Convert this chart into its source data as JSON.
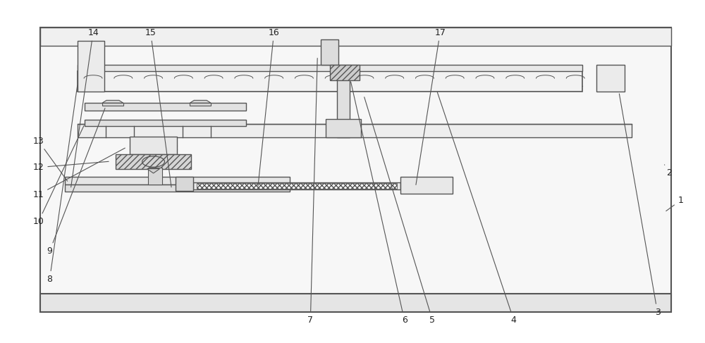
{
  "bg_color": "#ffffff",
  "lc": "#555555",
  "fig_width": 10.0,
  "fig_height": 4.87,
  "label_fs": 9,
  "label_color": "#222222",
  "labels_info": [
    [
      1,
      0.968,
      0.415,
      0.945,
      0.38
    ],
    [
      2,
      0.952,
      0.495,
      0.945,
      0.52
    ],
    [
      3,
      0.935,
      0.085,
      0.88,
      0.735
    ],
    [
      4,
      0.73,
      0.062,
      0.62,
      0.74
    ],
    [
      5,
      0.614,
      0.062,
      0.516,
      0.725
    ],
    [
      6,
      0.574,
      0.062,
      0.497,
      0.77
    ],
    [
      7,
      0.44,
      0.062,
      0.45,
      0.84
    ],
    [
      8,
      0.068,
      0.182,
      0.108,
      0.76
    ],
    [
      9,
      0.068,
      0.265,
      0.148,
      0.692
    ],
    [
      10,
      0.052,
      0.352,
      0.118,
      0.64
    ],
    [
      11,
      0.052,
      0.432,
      0.178,
      0.572
    ],
    [
      12,
      0.052,
      0.512,
      0.155,
      0.53
    ],
    [
      13,
      0.052,
      0.59,
      0.095,
      0.467
    ],
    [
      14,
      0.13,
      0.91,
      0.098,
      0.448
    ],
    [
      15,
      0.212,
      0.91,
      0.242,
      0.448
    ],
    [
      16,
      0.388,
      0.91,
      0.365,
      0.452
    ],
    [
      17,
      0.625,
      0.91,
      0.59,
      0.455
    ]
  ]
}
